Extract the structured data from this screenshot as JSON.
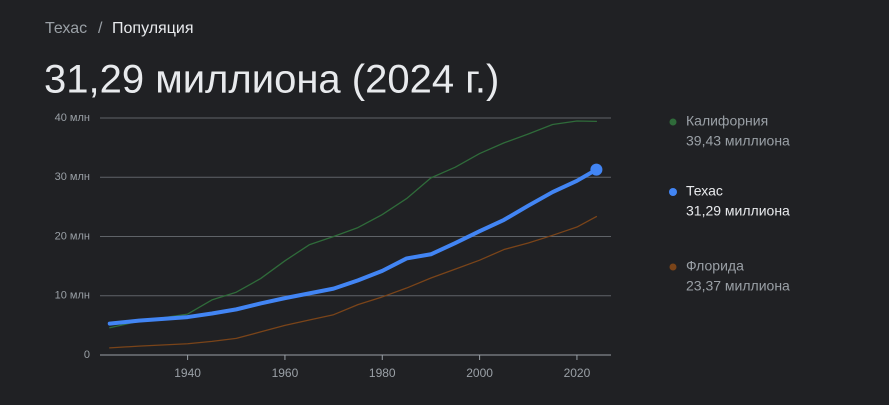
{
  "breadcrumb": [
    "Техас",
    "Популяция"
  ],
  "chart_data": {
    "type": "line",
    "title": "31,29 миллиона (2024 г.)",
    "x": [
      1924,
      1930,
      1940,
      1945,
      1950,
      1955,
      1960,
      1965,
      1970,
      1975,
      1980,
      1985,
      1990,
      1995,
      2000,
      2005,
      2010,
      2015,
      2020,
      2024
    ],
    "series": [
      {
        "name": "Калифорния",
        "color": "#2f6b3a",
        "values": [
          4.6,
          5.7,
          6.9,
          9.3,
          10.6,
          12.9,
          15.9,
          18.6,
          20.0,
          21.5,
          23.7,
          26.4,
          29.9,
          31.7,
          34.0,
          35.8,
          37.3,
          38.9,
          39.5,
          39.43
        ],
        "value_labels": [
          null,
          null,
          null,
          null,
          null,
          null,
          null,
          null,
          null,
          null,
          null,
          null,
          null,
          null,
          null,
          null,
          null,
          null,
          null,
          "39,43 миллиона"
        ]
      },
      {
        "name": "Техас",
        "color": "#4285f4",
        "values": [
          5.3,
          5.8,
          6.4,
          7.0,
          7.7,
          8.7,
          9.6,
          10.4,
          11.2,
          12.6,
          14.2,
          16.3,
          17.0,
          18.9,
          20.9,
          22.8,
          25.2,
          27.5,
          29.4,
          31.29
        ],
        "value_labels": [
          null,
          null,
          null,
          null,
          null,
          null,
          null,
          null,
          null,
          null,
          null,
          null,
          null,
          null,
          null,
          null,
          null,
          null,
          null,
          "31,29 миллиона"
        ]
      },
      {
        "name": "Флорида",
        "color": "#7a4419",
        "values": [
          1.2,
          1.5,
          1.9,
          2.3,
          2.8,
          3.9,
          5.0,
          5.9,
          6.8,
          8.5,
          9.8,
          11.3,
          13.0,
          14.5,
          16.0,
          17.8,
          18.9,
          20.2,
          21.6,
          23.37
        ],
        "value_labels": [
          null,
          null,
          null,
          null,
          null,
          null,
          null,
          null,
          null,
          null,
          null,
          null,
          null,
          null,
          null,
          null,
          null,
          null,
          null,
          "23,37 миллиона"
        ]
      }
    ],
    "xlim": [
      1922,
      2027
    ],
    "xticks": [
      1940,
      1960,
      1980,
      2000,
      2020
    ],
    "ylim": [
      0,
      40
    ],
    "yticks": [
      {
        "value": 0,
        "label": "0"
      },
      {
        "value": 10,
        "label": "10 млн"
      },
      {
        "value": 20,
        "label": "20 млн"
      },
      {
        "value": 30,
        "label": "30 млн"
      },
      {
        "value": 40,
        "label": "40 млн"
      }
    ],
    "grid": true,
    "legend": "right"
  }
}
